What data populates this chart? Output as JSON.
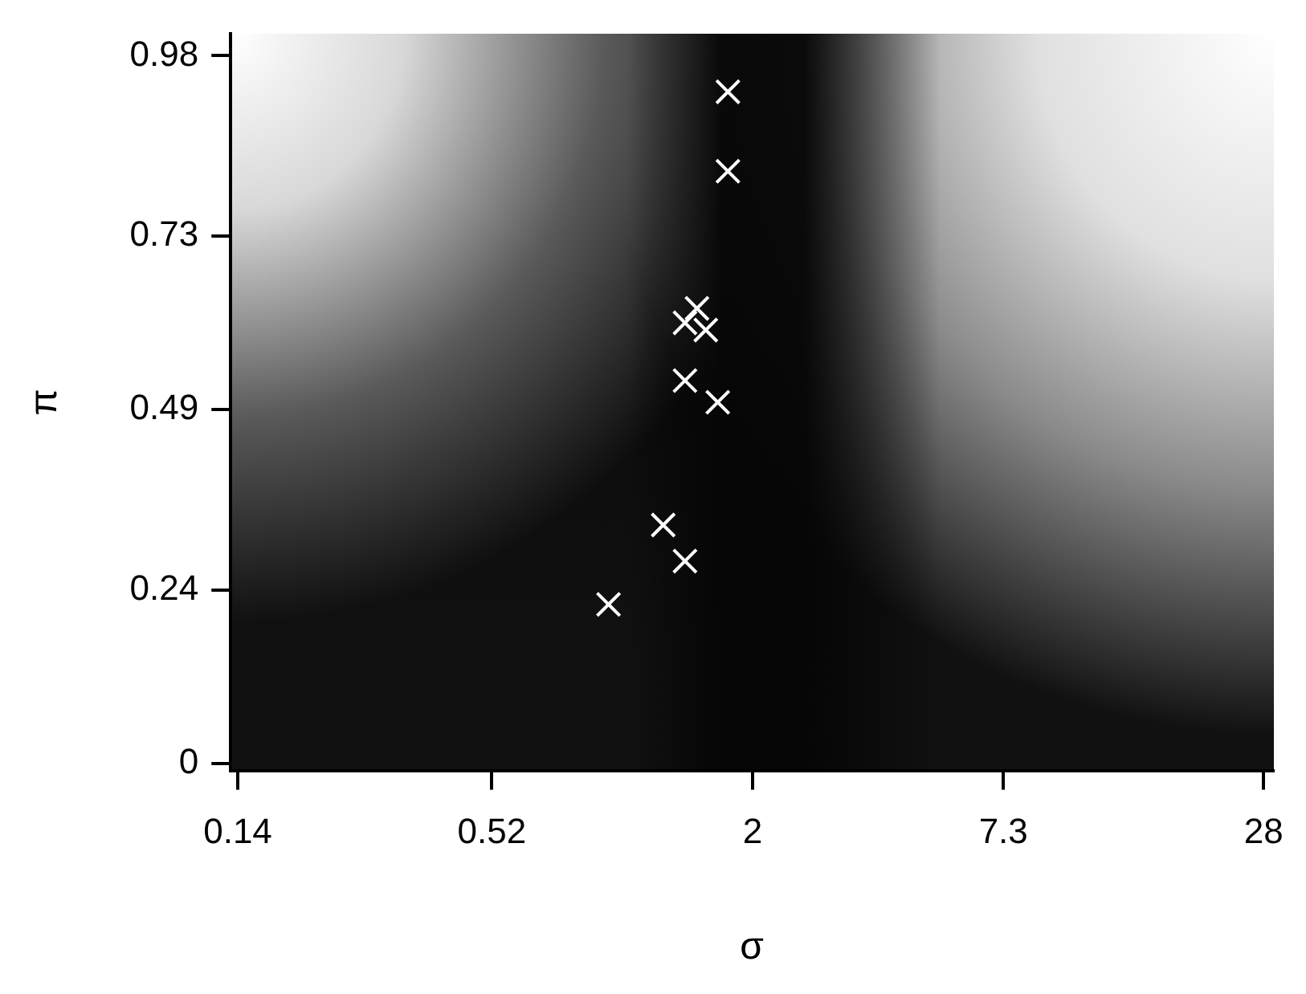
{
  "chart_data": {
    "type": "scatter",
    "xlabel": "σ",
    "ylabel": "π",
    "log": "x",
    "marker": "cross",
    "grid": false,
    "legend": false,
    "xlim": [
      0.135,
      29.4
    ],
    "xticks": [
      0.14,
      0.52,
      2,
      7.3,
      28
    ],
    "ylim": [
      -0.01,
      1.01
    ],
    "yticks": [
      0,
      0.24,
      0.49,
      0.73,
      0.98
    ],
    "series": [
      {
        "color": "#ffffff",
        "x": [
          1.76,
          1.76,
          1.5,
          1.41,
          1.57,
          1.41,
          1.67,
          1.26,
          1.41,
          0.95
        ],
        "values": [
          0.93,
          0.82,
          0.63,
          0.61,
          0.6,
          0.53,
          0.5,
          0.33,
          0.28,
          0.22
        ]
      }
    ]
  }
}
